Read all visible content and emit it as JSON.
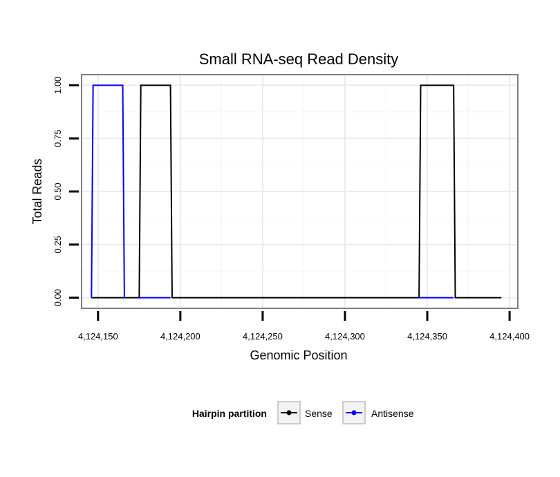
{
  "chart_data": {
    "type": "line",
    "title": "Small RNA-seq Read Density",
    "xlabel": "Genomic Position",
    "ylabel": "Total Reads",
    "xlim": [
      4124140,
      4124405
    ],
    "ylim": [
      -0.05,
      1.05
    ],
    "x_ticks": [
      4124150,
      4124200,
      4124250,
      4124300,
      4124350,
      4124400
    ],
    "x_tick_labels": [
      "4,124,150",
      "4,124,200",
      "4,124,250",
      "4,124,300",
      "4,124,350",
      "4,124,400"
    ],
    "y_ticks": [
      0,
      0.25,
      0.5,
      0.75,
      1.0
    ],
    "y_tick_labels": [
      "0.00",
      "0.25",
      "0.50",
      "0.75",
      "1.00"
    ],
    "grid": true,
    "legend": {
      "title": "Hairpin partition",
      "position": "bottom"
    },
    "series": [
      {
        "name": "Sense",
        "color": "#000000",
        "x": [
          4124146,
          4124175,
          4124176,
          4124194,
          4124195,
          4124345,
          4124346,
          4124366,
          4124367,
          4124395
        ],
        "y": [
          0,
          0,
          1,
          1,
          0,
          0,
          1,
          1,
          0,
          0
        ]
      },
      {
        "name": "Antisense",
        "color": "#0000ff",
        "x": [
          4124146,
          4124147,
          4124165,
          4124166,
          4124175,
          4124194,
          4124345,
          4124366
        ],
        "y": [
          0,
          1,
          1,
          0,
          0,
          0,
          0,
          0
        ],
        "segments": [
          [
            0,
            4
          ],
          [
            4,
            6
          ],
          [
            6,
            8
          ]
        ]
      }
    ]
  }
}
